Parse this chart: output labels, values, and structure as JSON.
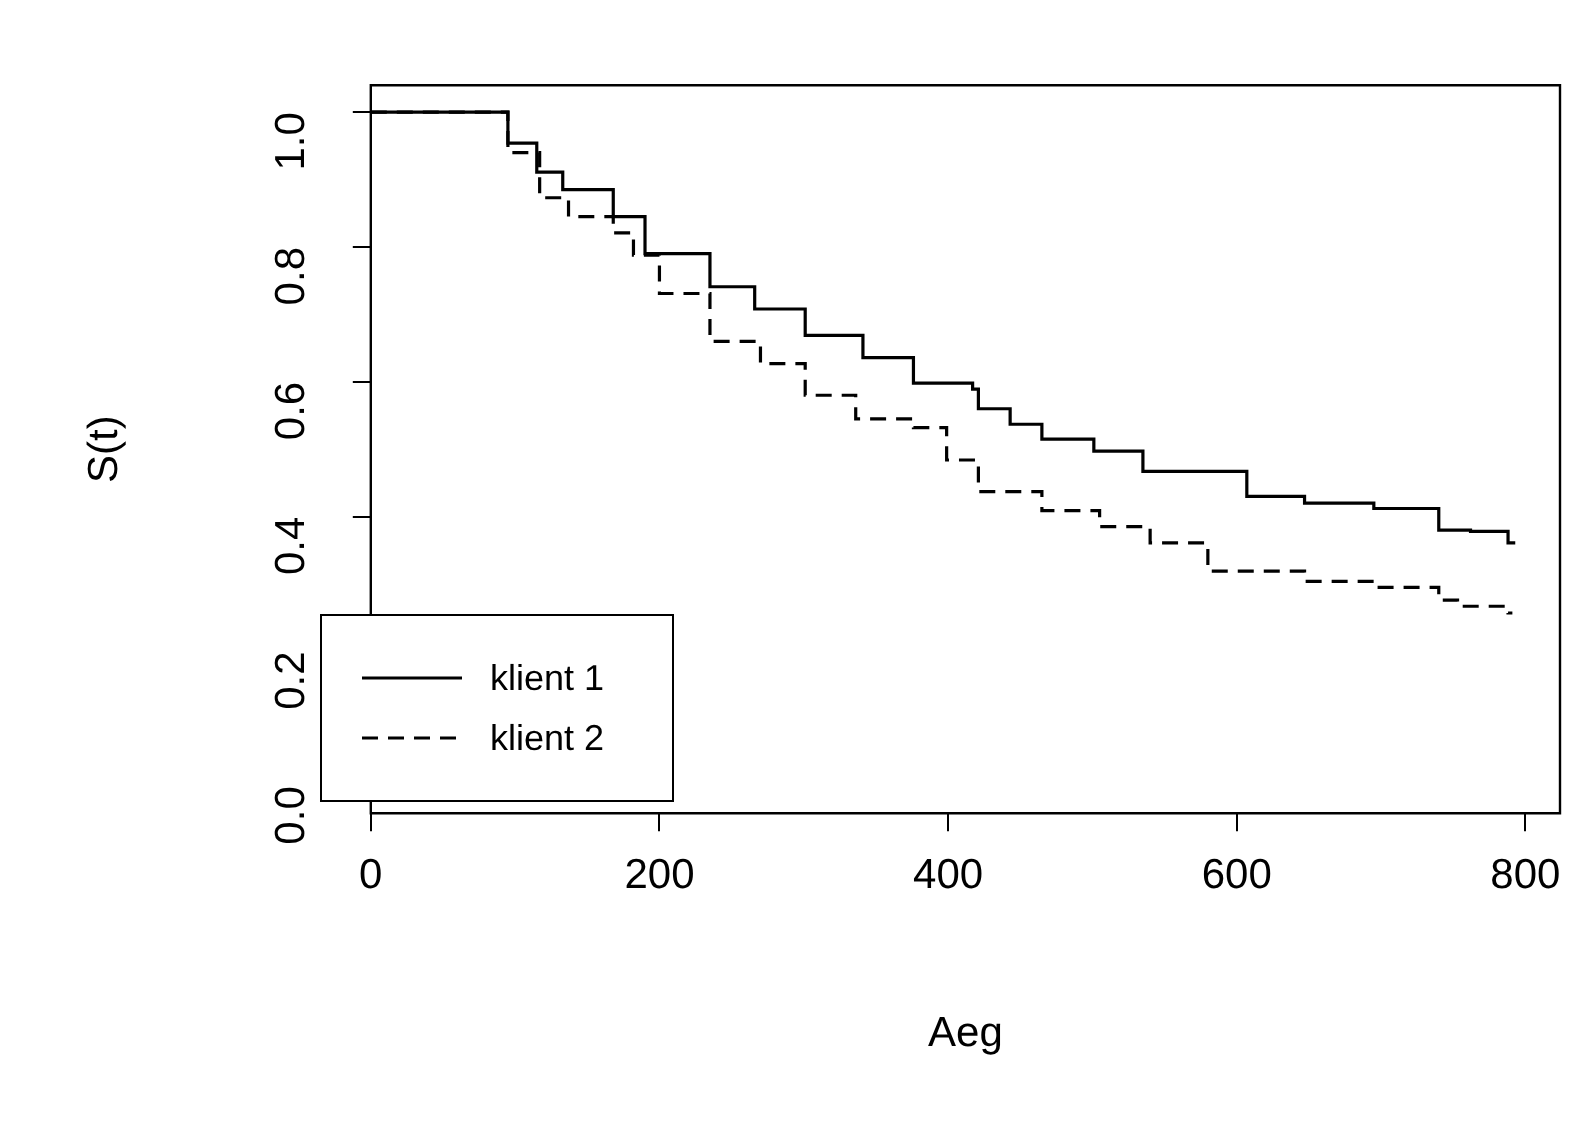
{
  "chart_data": {
    "type": "step",
    "xlabel": "Aeg",
    "ylabel": "S(t)",
    "xlim": [
      0,
      824
    ],
    "ylim": [
      -0.04,
      1.04
    ],
    "xticks": [
      0,
      200,
      400,
      600,
      800
    ],
    "yticks": [
      {
        "value": 0,
        "label": "0.0"
      },
      0.2,
      0.4,
      0.6,
      0.8,
      {
        "value": 1,
        "label": "1.0"
      }
    ],
    "grid": false,
    "legend": "bottom left",
    "marker": "none",
    "series": [
      {
        "name": "klient 1",
        "color": "#000000",
        "line_style": "solid",
        "x": [
          0,
          95,
          115,
          133,
          168,
          190,
          235,
          266,
          301,
          341,
          376,
          417,
          421,
          443,
          465,
          501,
          535,
          607,
          647,
          695,
          740,
          762,
          788,
          793
        ],
        "values": [
          1,
          1,
          0.954,
          0.911,
          0.885,
          0.845,
          0.79,
          0.741,
          0.708,
          0.669,
          0.636,
          0.598,
          0.589,
          0.56,
          0.537,
          0.515,
          0.497,
          0.467,
          0.43,
          0.42,
          0.412,
          0.38,
          0.378,
          0.361
        ]
      },
      {
        "name": "klient 2",
        "color": "#000000",
        "line_style": "dashed",
        "x": [
          0,
          95,
          117,
          137,
          168,
          182,
          200,
          235,
          270,
          301,
          336,
          376,
          399,
          421,
          465,
          505,
          540,
          580,
          647,
          695,
          740,
          753,
          788,
          791
        ],
        "values": [
          1,
          1,
          0.94,
          0.873,
          0.845,
          0.821,
          0.788,
          0.731,
          0.66,
          0.627,
          0.58,
          0.545,
          0.532,
          0.484,
          0.437,
          0.409,
          0.385,
          0.361,
          0.319,
          0.304,
          0.295,
          0.276,
          0.267,
          0.257
        ]
      }
    ]
  }
}
